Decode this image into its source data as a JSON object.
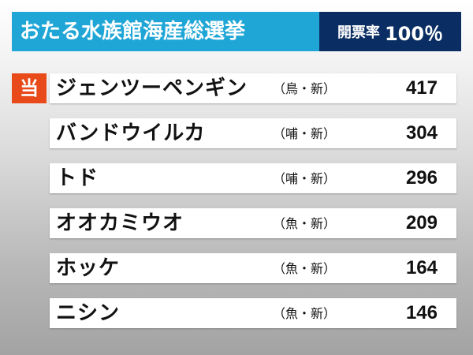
{
  "header": {
    "title": "おたる水族館海産総選挙",
    "count_label": "開票率",
    "count_value": "100％"
  },
  "elected_label": "当",
  "candidates": [
    {
      "name": "ジェンツーペンギン",
      "affiliation": "（鳥・新）",
      "votes": "417",
      "elected": true
    },
    {
      "name": "バンドウイルカ",
      "affiliation": "（哺・新）",
      "votes": "304",
      "elected": false
    },
    {
      "name": "トド",
      "affiliation": "（哺・新）",
      "votes": "296",
      "elected": false
    },
    {
      "name": "オオカミウオ",
      "affiliation": "（魚・新）",
      "votes": "209",
      "elected": false
    },
    {
      "name": "ホッケ",
      "affiliation": "（魚・新）",
      "votes": "164",
      "elected": false
    },
    {
      "name": "ニシン",
      "affiliation": "（魚・新）",
      "votes": "146",
      "elected": false
    }
  ],
  "colors": {
    "title_bg": "#1fa6d6",
    "badge_bg": "#0a2e63",
    "elected_bg": "#e84a1a"
  }
}
